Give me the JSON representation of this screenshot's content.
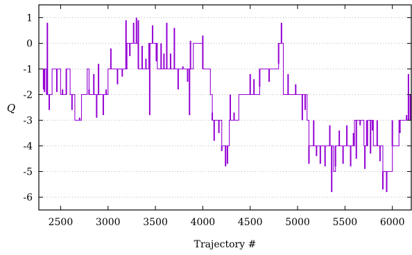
{
  "chart_data": {
    "type": "line",
    "title": "",
    "xlabel": "Trajectory #",
    "ylabel": "Q",
    "xlim": [
      2270,
      6200
    ],
    "ylim": [
      -6.5,
      1.5
    ],
    "x_ticks": [
      2500,
      3000,
      3500,
      4000,
      4500,
      5000,
      5500,
      6000
    ],
    "y_ticks": [
      1,
      0,
      -1,
      -2,
      -3,
      -4,
      -5,
      -6
    ],
    "grid": "horizontal-dotted",
    "legend": "none",
    "color": "#9400d3",
    "series": [
      {
        "levels": [
          [
            2270,
            -1
          ],
          [
            2350,
            -2
          ],
          [
            2410,
            -1
          ],
          [
            2500,
            -2
          ],
          [
            2560,
            -1
          ],
          [
            2600,
            -2
          ],
          [
            2650,
            -3
          ],
          [
            2720,
            -2
          ],
          [
            2780,
            -1
          ],
          [
            2800,
            -2
          ],
          [
            3000,
            -1
          ],
          [
            3150,
            -1
          ],
          [
            3200,
            0
          ],
          [
            3320,
            -1
          ],
          [
            3430,
            0
          ],
          [
            3520,
            -1
          ],
          [
            3860,
            -1
          ],
          [
            3900,
            0
          ],
          [
            4000,
            -1
          ],
          [
            4080,
            -2
          ],
          [
            4100,
            -3
          ],
          [
            4200,
            -4
          ],
          [
            4280,
            -3
          ],
          [
            4350,
            -3
          ],
          [
            4380,
            -2
          ],
          [
            4430,
            -2
          ],
          [
            4600,
            -1
          ],
          [
            4800,
            0
          ],
          [
            4850,
            -2
          ],
          [
            4980,
            -2
          ],
          [
            5100,
            -3
          ],
          [
            5120,
            -4
          ],
          [
            5270,
            -4
          ],
          [
            5280,
            -4
          ],
          [
            5380,
            -5
          ],
          [
            5400,
            -4
          ],
          [
            5480,
            -4
          ],
          [
            5560,
            -4
          ],
          [
            5600,
            -3
          ],
          [
            5700,
            -4
          ],
          [
            5740,
            -3
          ],
          [
            5800,
            -4
          ],
          [
            5900,
            -5
          ],
          [
            6000,
            -4
          ],
          [
            6070,
            -3
          ],
          [
            6150,
            -3
          ],
          [
            6200,
            -3
          ]
        ],
        "spikes": [
          [
            2320,
            -1.8
          ],
          [
            2330,
            -1.9
          ],
          [
            2360,
            0.8
          ],
          [
            2380,
            -2.6
          ],
          [
            2400,
            -2.0
          ],
          [
            2460,
            -1.9
          ],
          [
            2520,
            -1.8
          ],
          [
            2560,
            -2.0
          ],
          [
            2620,
            -2.6
          ],
          [
            2700,
            -2.9
          ],
          [
            2750,
            -2.0
          ],
          [
            2800,
            -1.8
          ],
          [
            2850,
            -1.2
          ],
          [
            2880,
            -2.9
          ],
          [
            2900,
            -0.8
          ],
          [
            2950,
            -2.8
          ],
          [
            2980,
            -1.8
          ],
          [
            3030,
            -0.2
          ],
          [
            3100,
            -1.6
          ],
          [
            3150,
            -1.3
          ],
          [
            3190,
            0.9
          ],
          [
            3230,
            -0.5
          ],
          [
            3270,
            0.8
          ],
          [
            3300,
            1.0
          ],
          [
            3320,
            0.9
          ],
          [
            3360,
            -0.1
          ],
          [
            3400,
            -0.6
          ],
          [
            3440,
            -2.8
          ],
          [
            3470,
            0.7
          ],
          [
            3510,
            -0.7
          ],
          [
            3560,
            0.0
          ],
          [
            3590,
            -0.4
          ],
          [
            3620,
            0.8
          ],
          [
            3660,
            -0.4
          ],
          [
            3700,
            0.6
          ],
          [
            3740,
            -1.8
          ],
          [
            3790,
            -0.9
          ],
          [
            3840,
            -1.5
          ],
          [
            3860,
            -2.8
          ],
          [
            3870,
            0.1
          ],
          [
            4000,
            0.3
          ],
          [
            4100,
            -2.7
          ],
          [
            4120,
            -3.8
          ],
          [
            4170,
            -3.5
          ],
          [
            4200,
            -4.2
          ],
          [
            4240,
            -4.8
          ],
          [
            4260,
            -4.7
          ],
          [
            4290,
            -2.0
          ],
          [
            4330,
            -2.7
          ],
          [
            4500,
            -1.2
          ],
          [
            4540,
            -1.4
          ],
          [
            4600,
            -1.7
          ],
          [
            4700,
            -1.5
          ],
          [
            4800,
            -0.8
          ],
          [
            4830,
            0.8
          ],
          [
            4900,
            -1.2
          ],
          [
            4980,
            -1.6
          ],
          [
            5050,
            -3.0
          ],
          [
            5080,
            -2.6
          ],
          [
            5120,
            -4.7
          ],
          [
            5170,
            -3.0
          ],
          [
            5200,
            -4.4
          ],
          [
            5240,
            -4.7
          ],
          [
            5290,
            -4.8
          ],
          [
            5300,
            -4.0
          ],
          [
            5340,
            -3.2
          ],
          [
            5360,
            -5.8
          ],
          [
            5400,
            -4.8
          ],
          [
            5440,
            -3.4
          ],
          [
            5480,
            -4.7
          ],
          [
            5520,
            -3.2
          ],
          [
            5560,
            -4.8
          ],
          [
            5590,
            -3.5
          ],
          [
            5620,
            -4.5
          ],
          [
            5660,
            -3.2
          ],
          [
            5690,
            -3.0
          ],
          [
            5710,
            -4.9
          ],
          [
            5730,
            -3.0
          ],
          [
            5770,
            -4.3
          ],
          [
            5790,
            -3.4
          ],
          [
            5840,
            -3.0
          ],
          [
            5870,
            -4.6
          ],
          [
            5900,
            -5.7
          ],
          [
            5940,
            -5.8
          ],
          [
            5960,
            -5.0
          ],
          [
            6000,
            -3.0
          ],
          [
            6040,
            -4.0
          ],
          [
            6080,
            -3.5
          ],
          [
            6150,
            -2.8
          ],
          [
            6170,
            -1.2
          ],
          [
            6190,
            -2.0
          ]
        ]
      }
    ]
  }
}
